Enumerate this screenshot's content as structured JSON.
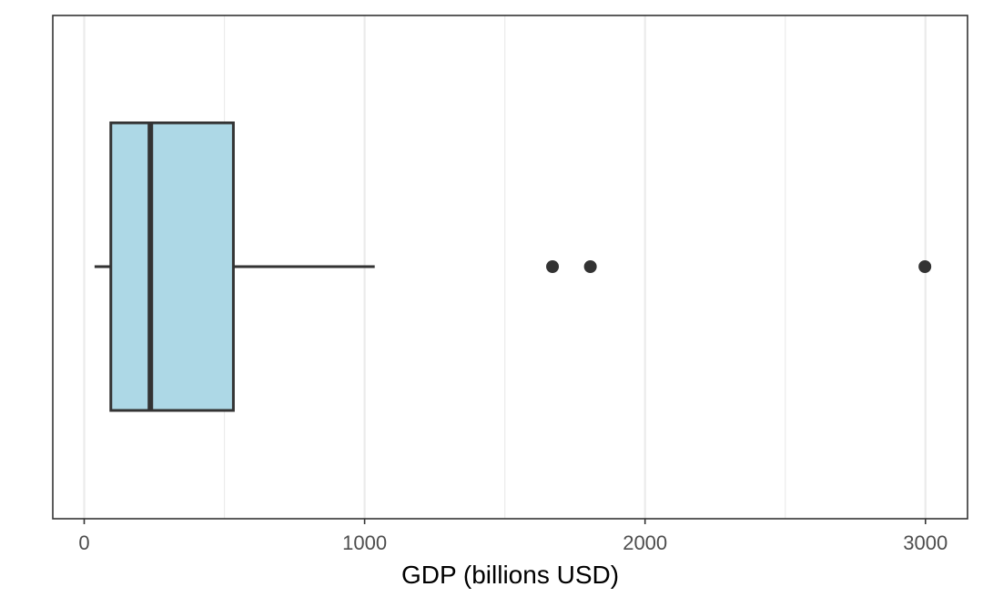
{
  "chart_data": {
    "type": "box",
    "orientation": "horizontal",
    "title": "",
    "xlabel": "GDP (billions USD)",
    "ylabel": "",
    "xlim": [
      -112,
      3150
    ],
    "x_ticks": [
      0,
      1000,
      2000,
      3000
    ],
    "x_minor_gridlines": [
      500,
      1500,
      2500
    ],
    "grid": "vertical",
    "box": {
      "whisker_low": 37,
      "q1": 95,
      "median": 236,
      "q3": 532,
      "whisker_high": 1036,
      "outliers": [
        1670,
        1805,
        2998
      ]
    },
    "colors": {
      "box_fill": "#add8e6",
      "box_outline": "#333333",
      "gridline": "#ebebeb",
      "panel_border": "#333333"
    }
  }
}
